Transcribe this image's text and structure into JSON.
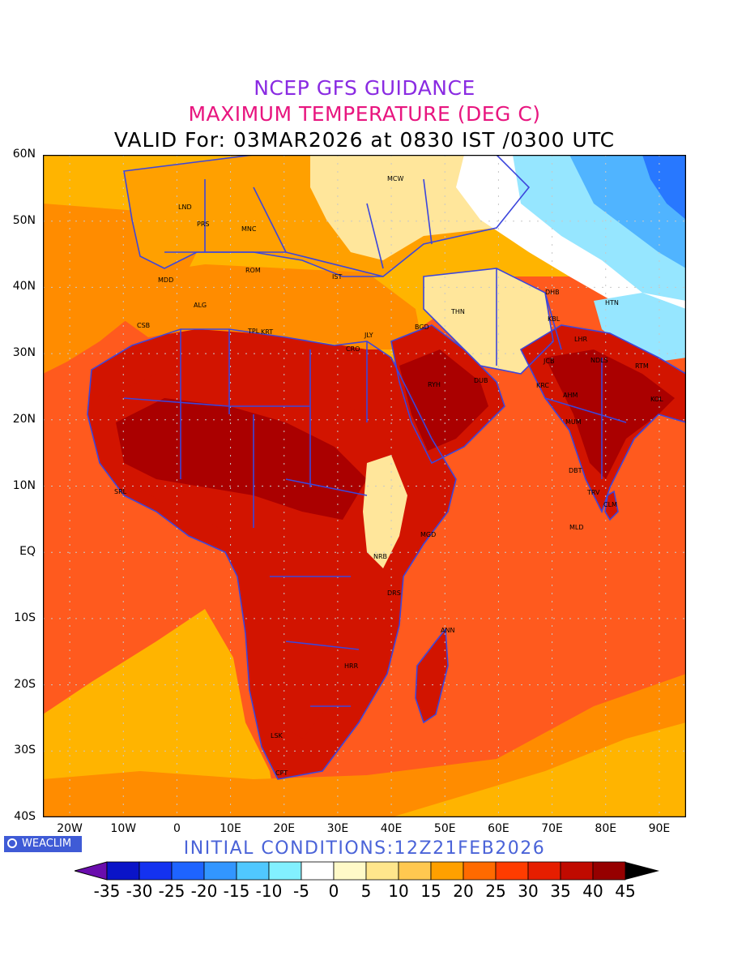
{
  "header": {
    "title_line1": "NCEP GFS GUIDANCE",
    "title_line2": "MAXIMUM TEMPERATURE (DEG C)",
    "title_line3": "VALID For: 03MAR2026 at 0830 IST /0300 UTC",
    "color_line1": "#8a2be2",
    "color_line2": "#e8157f",
    "color_line3": "#000000"
  },
  "axes": {
    "lat_labels": [
      "60N",
      "50N",
      "40N",
      "30N",
      "20N",
      "10N",
      "EQ",
      "10S",
      "20S",
      "30S",
      "40S"
    ],
    "lon_labels": [
      "20W",
      "10W",
      "0",
      "10E",
      "20E",
      "30E",
      "40E",
      "50E",
      "60E",
      "70E",
      "80E",
      "90E"
    ],
    "lat_range": [
      -40,
      60
    ],
    "lon_range": [
      -25,
      95
    ]
  },
  "stations": [
    {
      "code": "MCW"
    },
    {
      "code": "LND"
    },
    {
      "code": "PRS"
    },
    {
      "code": "MNC"
    },
    {
      "code": "ROM"
    },
    {
      "code": "MDD"
    },
    {
      "code": "IST"
    },
    {
      "code": "ALG"
    },
    {
      "code": "CSB"
    },
    {
      "code": "TPL"
    },
    {
      "code": "KRT"
    },
    {
      "code": "CRO"
    },
    {
      "code": "JLY"
    },
    {
      "code": "BGD"
    },
    {
      "code": "THN"
    },
    {
      "code": "DHB"
    },
    {
      "code": "HTN"
    },
    {
      "code": "KBL"
    },
    {
      "code": "LHR"
    },
    {
      "code": "JCB"
    },
    {
      "code": "NDLS"
    },
    {
      "code": "RTM"
    },
    {
      "code": "RYH"
    },
    {
      "code": "DUB"
    },
    {
      "code": "KRC"
    },
    {
      "code": "AHM"
    },
    {
      "code": "KOL"
    },
    {
      "code": "MUM"
    },
    {
      "code": "DBT"
    },
    {
      "code": "SRL"
    },
    {
      "code": "TRV"
    },
    {
      "code": "CLM"
    },
    {
      "code": "MLD"
    },
    {
      "code": "MGD"
    },
    {
      "code": "NRB"
    },
    {
      "code": "DRS"
    },
    {
      "code": "ANN"
    },
    {
      "code": "HRR"
    },
    {
      "code": "LSK"
    },
    {
      "code": "CPT"
    }
  ],
  "footer": {
    "logo_text": "WEACLIM",
    "initial_conditions": "INITIAL CONDITIONS:12Z21FEB2026",
    "initial_color": "#4a63d8"
  },
  "colorbar": {
    "labels": [
      "-35",
      "-30",
      "-25",
      "-20",
      "-15",
      "-10",
      "-5",
      "0",
      "5",
      "10",
      "15",
      "20",
      "25",
      "30",
      "35",
      "40",
      "45"
    ],
    "below_color": "#6a0dad",
    "above_color": "#000000",
    "bin_colors": [
      "#0a14c8",
      "#1432f0",
      "#1e64ff",
      "#3296ff",
      "#50c8ff",
      "#82f0ff",
      "#ffffff",
      "#fffac8",
      "#ffe68c",
      "#ffc850",
      "#ffa000",
      "#ff6a00",
      "#ff3c00",
      "#e61e00",
      "#c00a00",
      "#960000"
    ]
  },
  "map_colors": {
    "ocean_warm": "#ff5a1e",
    "ocean_mid": "#ff8c00",
    "ocean_cool": "#ffb400",
    "land_hot": "#d21400",
    "land_veryhot": "#aa0000",
    "land_mild": "#ffa000",
    "land_cool": "#ffe69b",
    "land_cold": "#fff5cd",
    "snow": "#ffffff",
    "cold_light": "#96e6ff",
    "cold_mid": "#50b4ff",
    "cold_deep": "#2878ff",
    "border": "#3c46dc",
    "grid": "#c8c8c8"
  }
}
